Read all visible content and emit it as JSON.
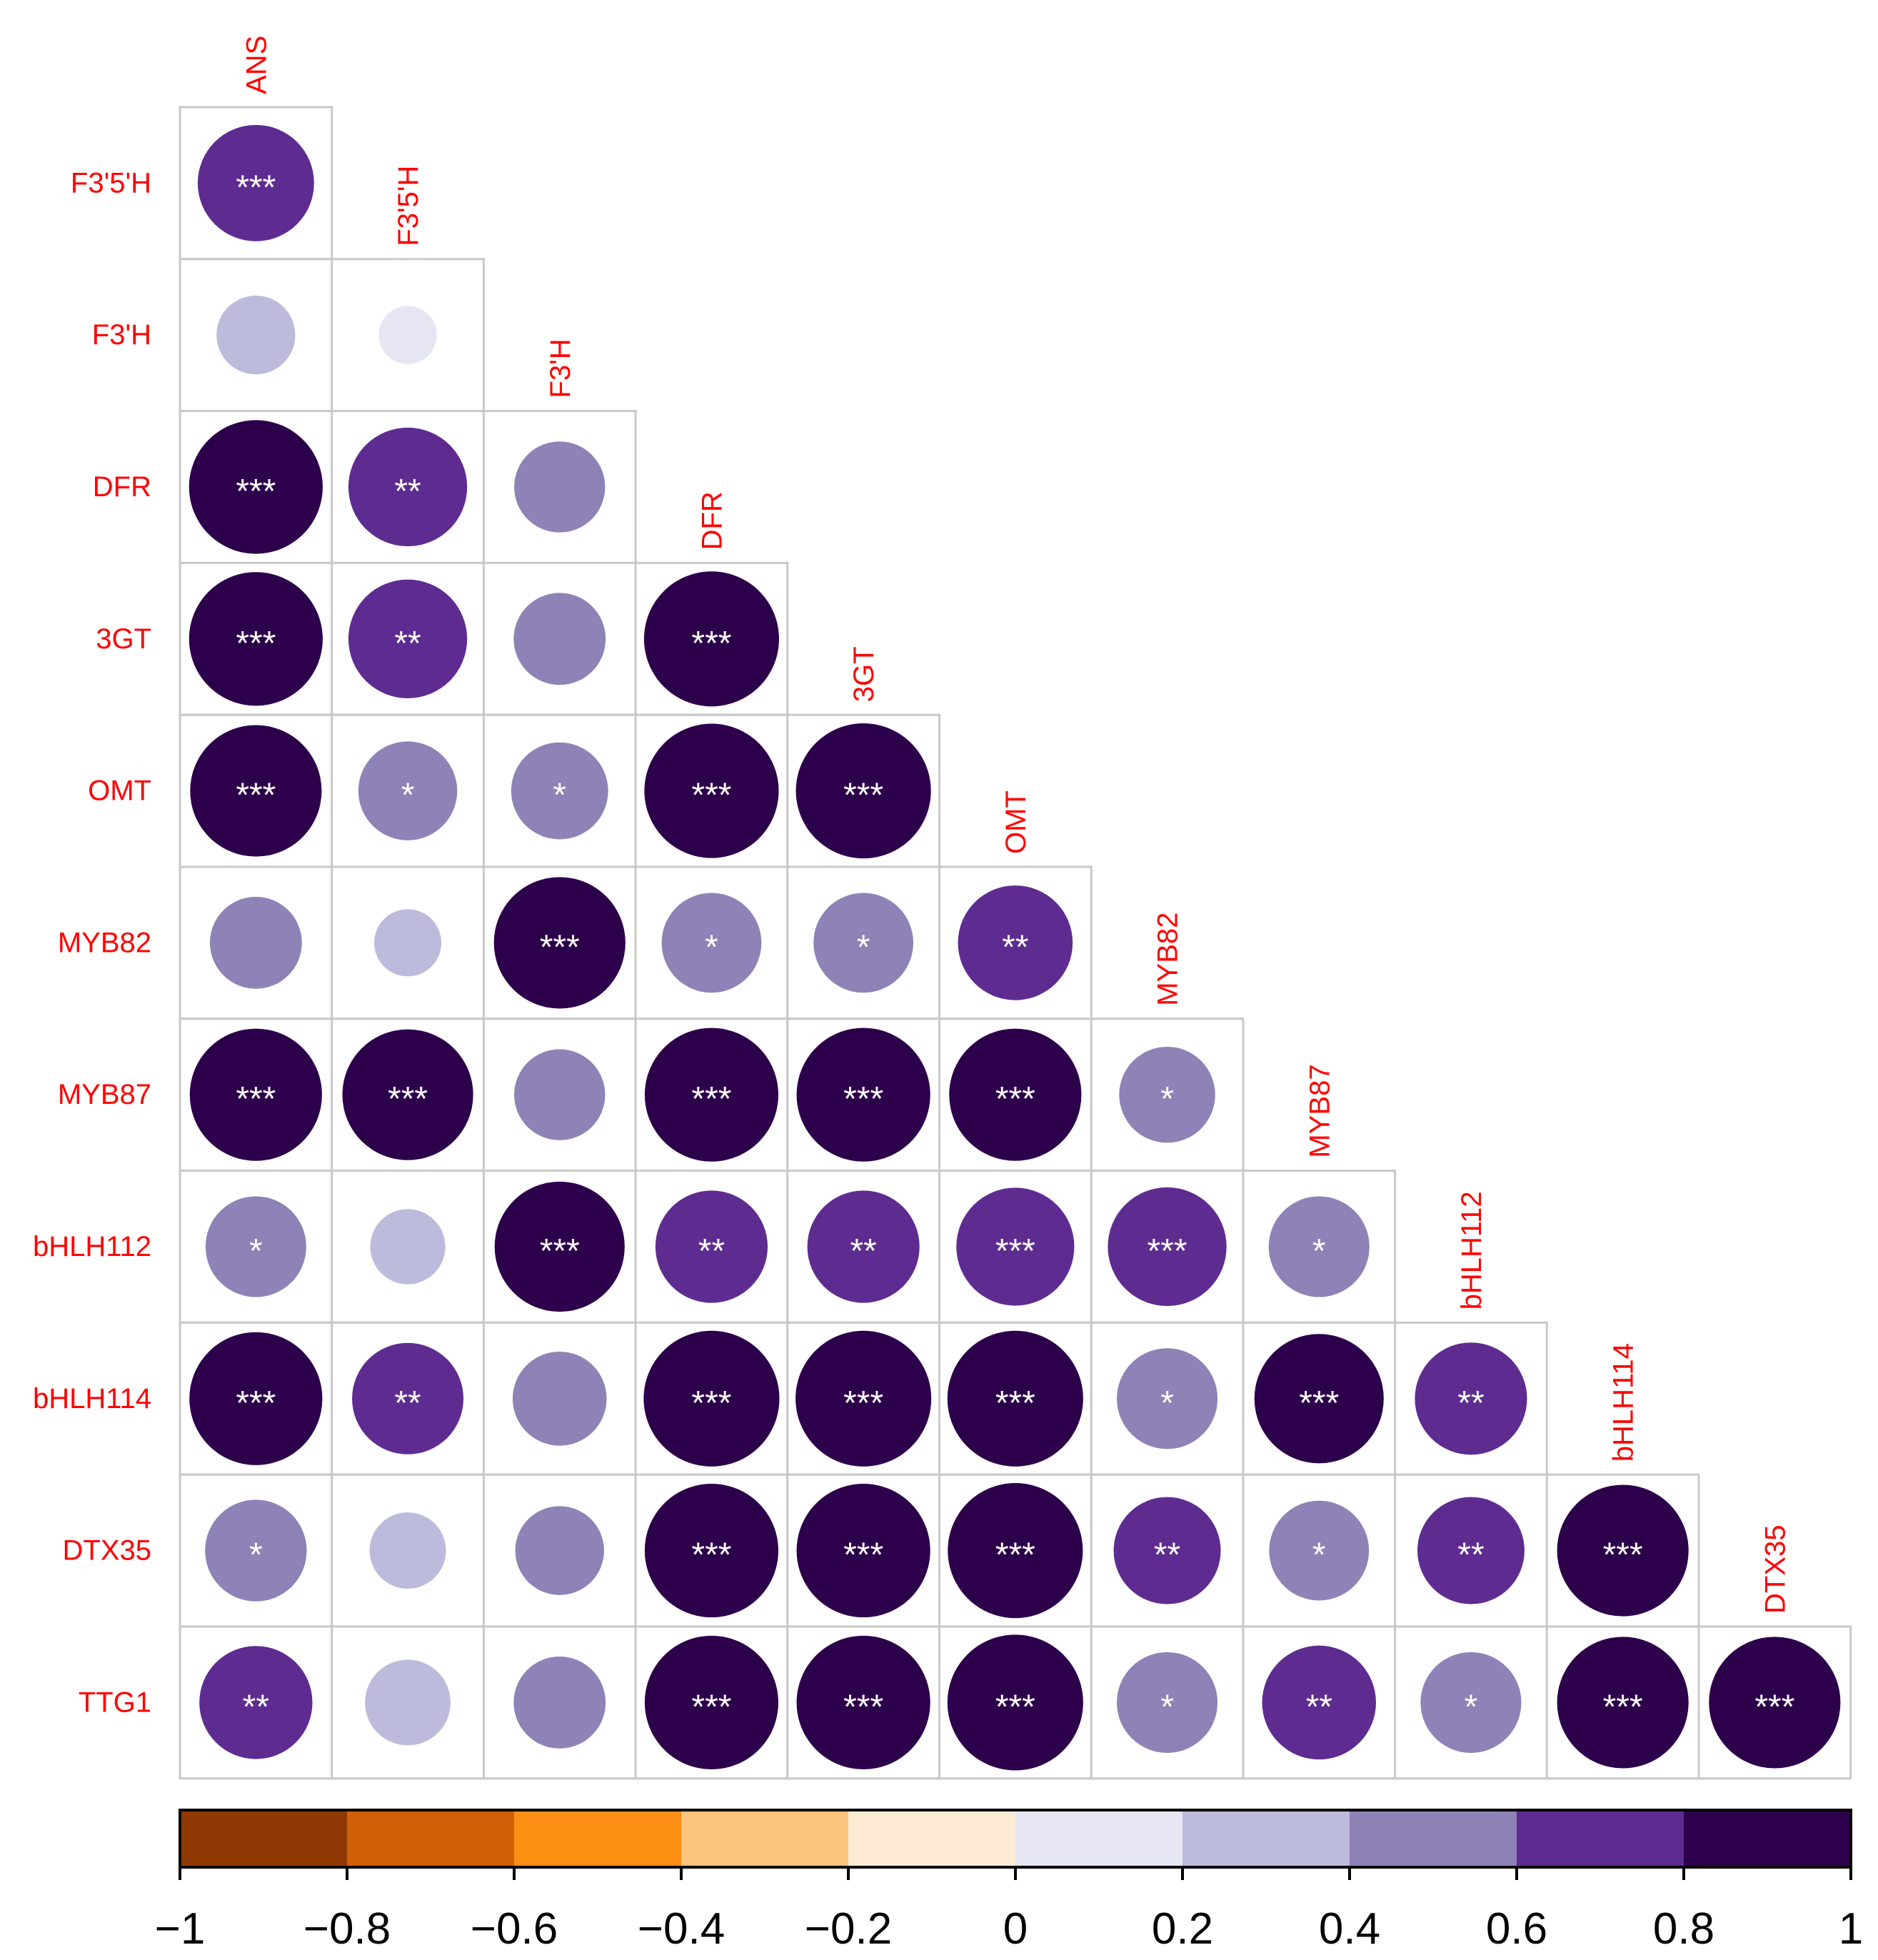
{
  "chart_data": {
    "type": "heatmap",
    "style": "lower-triangle correlation plot with circle markers",
    "variables": [
      "ANS",
      "F3'5'H",
      "F3'H",
      "DFR",
      "3GT",
      "OMT",
      "MYB82",
      "MYB87",
      "bHLH112",
      "bHLH114",
      "DTX35",
      "TTG1"
    ],
    "row_labels": [
      "F3'5'H",
      "F3'H",
      "DFR",
      "3GT",
      "OMT",
      "MYB82",
      "MYB87",
      "bHLH112",
      "bHLH114",
      "DTX35",
      "TTG1"
    ],
    "column_labels": [
      "ANS",
      "F3'5'H",
      "F3'H",
      "DFR",
      "3GT",
      "OMT",
      "MYB82",
      "MYB87",
      "bHLH112",
      "bHLH114",
      "DTX35"
    ],
    "correlations": [
      [
        0.72
      ],
      [
        0.33,
        0.18
      ],
      [
        0.95,
        0.75,
        0.44
      ],
      [
        0.95,
        0.75,
        0.45,
        0.97
      ],
      [
        0.92,
        0.52,
        0.5,
        0.96,
        0.97
      ],
      [
        0.45,
        0.24,
        0.92,
        0.53,
        0.53,
        0.7
      ],
      [
        0.93,
        0.91,
        0.44,
        0.95,
        0.95,
        0.93,
        0.49
      ],
      [
        0.54,
        0.3,
        0.9,
        0.67,
        0.67,
        0.74,
        0.75,
        0.54
      ],
      [
        0.94,
        0.66,
        0.47,
        0.98,
        0.98,
        0.98,
        0.54,
        0.89,
        0.67
      ],
      [
        0.55,
        0.31,
        0.42,
        0.95,
        0.95,
        0.97,
        0.61,
        0.53,
        0.61,
        0.92
      ],
      [
        0.68,
        0.39,
        0.45,
        0.95,
        0.95,
        0.98,
        0.54,
        0.69,
        0.54,
        0.92,
        0.92
      ]
    ],
    "significance": [
      [
        "***"
      ],
      [
        "",
        ""
      ],
      [
        "***",
        "**",
        ""
      ],
      [
        "***",
        "**",
        "",
        "***"
      ],
      [
        "***",
        "*",
        "*",
        "***",
        "***"
      ],
      [
        "",
        "",
        "***",
        "*",
        "*",
        "**"
      ],
      [
        "***",
        "***",
        "",
        "***",
        "***",
        "***",
        "*"
      ],
      [
        "*",
        "",
        "***",
        "**",
        "**",
        "***",
        "***",
        "*"
      ],
      [
        "***",
        "**",
        "",
        "***",
        "***",
        "***",
        "*",
        "***",
        "**"
      ],
      [
        "*",
        "",
        "",
        "***",
        "***",
        "***",
        "**",
        "*",
        "**",
        "***"
      ],
      [
        "**",
        "",
        "",
        "***",
        "***",
        "***",
        "*",
        "**",
        "*",
        "***",
        "***"
      ]
    ],
    "colorbar": {
      "range": [
        -1,
        1
      ],
      "ticks": [
        "−1",
        "−0.8",
        "−0.6",
        "−0.4",
        "−0.2",
        "0",
        "0.2",
        "0.4",
        "0.6",
        "0.8",
        "1"
      ],
      "bins": [
        {
          "from": -1.0,
          "to": -0.8,
          "color": "#8f3a04"
        },
        {
          "from": -0.8,
          "to": -0.6,
          "color": "#d05f07"
        },
        {
          "from": -0.6,
          "to": -0.4,
          "color": "#fc8e14"
        },
        {
          "from": -0.4,
          "to": -0.2,
          "color": "#fdc47e"
        },
        {
          "from": -0.2,
          "to": 0.0,
          "color": "#fdebd3"
        },
        {
          "from": 0.0,
          "to": 0.2,
          "color": "#e6e6f2"
        },
        {
          "from": 0.2,
          "to": 0.4,
          "color": "#bdbbdb"
        },
        {
          "from": 0.4,
          "to": 0.6,
          "color": "#8f82b6"
        },
        {
          "from": 0.6,
          "to": 0.8,
          "color": "#5e2c90"
        },
        {
          "from": 0.8,
          "to": 1.0,
          "color": "#2d004b"
        }
      ]
    },
    "label_color": "#ff0000",
    "grid_color": "#c8c8c8",
    "star_color": "#ffffff"
  }
}
